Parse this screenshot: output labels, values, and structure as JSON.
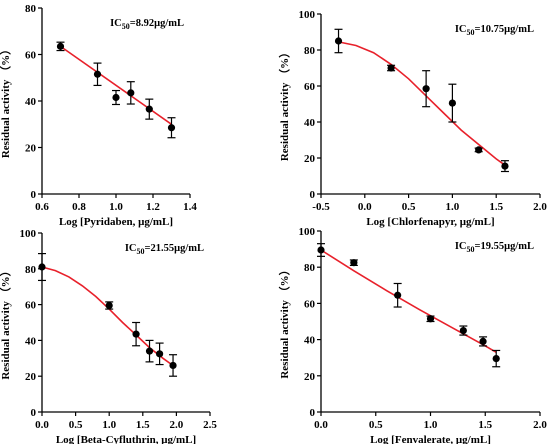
{
  "figure_title": "",
  "chart_data": [
    {
      "type": "scatter",
      "title": "",
      "annotation": {
        "prefix": "IC",
        "sub": "50",
        "suffix": "=8.92μg/mL"
      },
      "xlabel": "Log [Pyridaben,  μg/mL]",
      "ylabel": "Residual activity （%）",
      "xlim": [
        0.6,
        1.4
      ],
      "ylim": [
        0,
        80
      ],
      "xticks": [
        0.6,
        0.8,
        1.0,
        1.2,
        1.4
      ],
      "xtick_labels": [
        "0.6",
        "0.8",
        "1.0",
        "1.2",
        "1.4"
      ],
      "yticks": [
        0,
        20,
        40,
        60,
        80
      ],
      "ytick_labels": [
        "0",
        "20",
        "40",
        "60",
        "80"
      ],
      "x": [
        0.7,
        0.9,
        1.0,
        1.08,
        1.18,
        1.3
      ],
      "y": [
        63.5,
        51.5,
        41.5,
        43.5,
        36.5,
        28.5
      ],
      "error": [
        1.8,
        4.8,
        3.0,
        4.8,
        4.3,
        4.3
      ],
      "fit": {
        "x": [
          0.7,
          1.3
        ],
        "y": [
          63.5,
          30
        ]
      },
      "grid": false,
      "fit_color": "#e8212b",
      "point_color": "#000000"
    },
    {
      "type": "scatter",
      "title": "",
      "annotation": {
        "prefix": "IC",
        "sub": "50",
        "suffix": "=10.75μg/mL"
      },
      "xlabel": "Log [Chlorfenapyr,  μg/mL]",
      "ylabel": "Residual activity （%）",
      "xlim": [
        -0.5,
        2.0
      ],
      "ylim": [
        0,
        100
      ],
      "xticks": [
        -0.5,
        0.0,
        0.5,
        1.0,
        1.5,
        2.0
      ],
      "xtick_labels": [
        "-0.5",
        "0.0",
        "0.5",
        "1.0",
        "1.5",
        "2.0"
      ],
      "yticks": [
        0,
        20,
        40,
        60,
        80,
        100
      ],
      "ytick_labels": [
        "0",
        "20",
        "40",
        "60",
        "80",
        "100"
      ],
      "x": [
        -0.3,
        0.3,
        0.7,
        1.0,
        1.3,
        1.6
      ],
      "y": [
        85,
        70,
        58.5,
        50.5,
        24.5,
        15.5
      ],
      "error": [
        6.5,
        1.5,
        10,
        10.5,
        1.0,
        3.0
      ],
      "fit": {
        "x": [
          -0.3,
          -0.1,
          0.1,
          0.3,
          0.5,
          0.7,
          0.9,
          1.1,
          1.3,
          1.5,
          1.6
        ],
        "y": [
          84.5,
          82.5,
          78.5,
          72,
          64,
          54.5,
          45,
          35.5,
          27.5,
          19.5,
          16
        ]
      },
      "grid": false,
      "fit_color": "#e8212b",
      "point_color": "#000000"
    },
    {
      "type": "scatter",
      "title": "",
      "annotation": {
        "prefix": "IC",
        "sub": "50",
        "suffix": "=21.55μg/mL"
      },
      "xlabel": "Log [Beta-Cyfluthrin,  μg/mL]",
      "ylabel": "Residual activity （%）",
      "xlim": [
        0.0,
        2.5
      ],
      "ylim": [
        0,
        100
      ],
      "xticks": [
        0.0,
        0.5,
        1.0,
        1.5,
        2.0,
        2.5
      ],
      "xtick_labels": [
        "0.0",
        "0.5",
        "1.0",
        "1.5",
        "2.0",
        "2.5"
      ],
      "yticks": [
        0,
        20,
        40,
        60,
        80,
        100
      ],
      "ytick_labels": [
        "0",
        "20",
        "40",
        "60",
        "80",
        "100"
      ],
      "x": [
        0.0,
        1.0,
        1.4,
        1.6,
        1.75,
        1.95
      ],
      "y": [
        81,
        59.5,
        43.5,
        34,
        32.5,
        26
      ],
      "error": [
        7.5,
        2.0,
        6.5,
        6.0,
        6.0,
        6.0
      ],
      "fit": {
        "x": [
          0.0,
          0.2,
          0.4,
          0.6,
          0.8,
          1.0,
          1.2,
          1.4,
          1.6,
          1.8,
          1.95
        ],
        "y": [
          81,
          79,
          75.5,
          70.5,
          64.5,
          57.5,
          50,
          43,
          36,
          30,
          26
        ]
      },
      "grid": false,
      "fit_color": "#e8212b",
      "point_color": "#000000"
    },
    {
      "type": "scatter",
      "title": "",
      "annotation": {
        "prefix": "IC",
        "sub": "50",
        "suffix": "=19.55μg/mL"
      },
      "xlabel": "Log [Fenvalerate,  μg/mL]",
      "ylabel": "Residual activity （%）",
      "xlim": [
        0.0,
        2.0
      ],
      "ylim": [
        0,
        100
      ],
      "xticks": [
        0.0,
        0.5,
        1.0,
        1.5,
        2.0
      ],
      "xtick_labels": [
        "0.0",
        "0.5",
        "1.0",
        "1.5",
        "2.0"
      ],
      "yticks": [
        0,
        20,
        40,
        60,
        80,
        100
      ],
      "ytick_labels": [
        "0",
        "20",
        "40",
        "60",
        "80",
        "100"
      ],
      "x": [
        0.0,
        0.3,
        0.7,
        1.0,
        1.3,
        1.48,
        1.6
      ],
      "y": [
        89.5,
        82.5,
        64.5,
        51.5,
        45,
        39,
        29.5
      ],
      "error": [
        3.5,
        1.5,
        6.5,
        1.5,
        2.5,
        2.5,
        4.5
      ],
      "fit": {
        "x": [
          0.0,
          0.3,
          0.6,
          0.9,
          1.2,
          1.5,
          1.6
        ],
        "y": [
          89.5,
          78,
          67,
          56.5,
          46.5,
          36.5,
          33
        ]
      },
      "grid": false,
      "fit_color": "#e8212b",
      "point_color": "#000000"
    }
  ]
}
